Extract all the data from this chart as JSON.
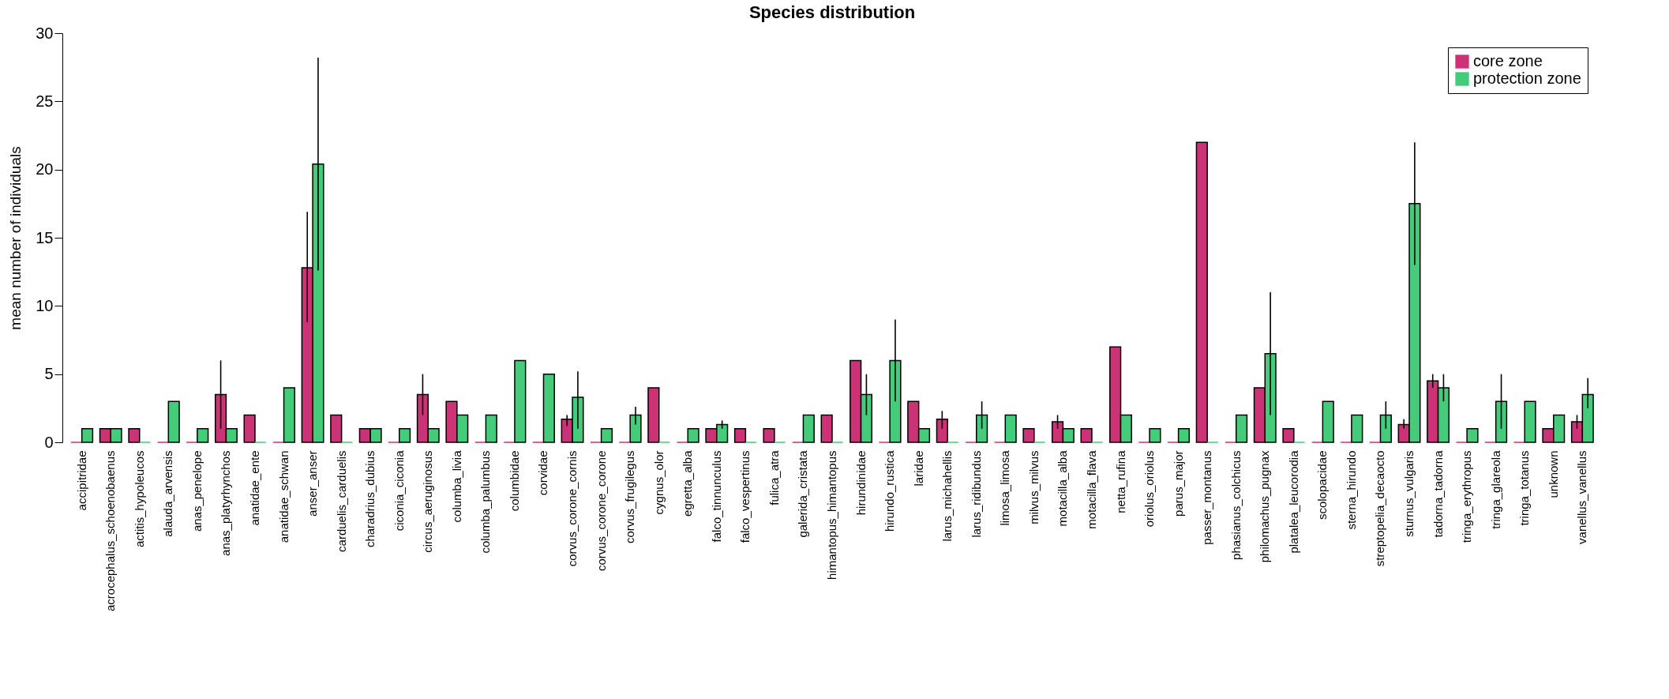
{
  "chart_data": {
    "type": "bar",
    "title": "Species distribution",
    "ylabel": "mean number of individuals",
    "categories": [
      "accipitridae",
      "acrocephalus_schoenobaenus",
      "actitis_hypoleucos",
      "alauda_arvensis",
      "anas_penelope",
      "anas_platyrhynchos",
      "anatidae_ente",
      "anatidae_schwan",
      "anser_anser",
      "carduelis_carduelis",
      "charadrius_dubius",
      "ciconia_ciconia",
      "circus_aeruginosus",
      "columba_livia",
      "columba_palumbus",
      "columbidae",
      "corvidae",
      "corvus_corone_cornis",
      "corvus_corone_corone",
      "corvus_frugilegus",
      "cygnus_olor",
      "egretta_alba",
      "falco_tinnunculus",
      "falco_vespertinus",
      "fulica_atra",
      "galerida_cristata",
      "himantopus_himantopus",
      "hirundinidae",
      "hirundo_rustica",
      "laridae",
      "larus_michahellis",
      "larus_ridibundus",
      "limosa_limosa",
      "milvus_milvus",
      "motacilla_alba",
      "motacilla_flava",
      "netta_rufina",
      "oriolus_oriolus",
      "parus_major",
      "passer_montanus",
      "phasianus_colchicus",
      "philomachus_pugnax",
      "platalea_leucorodia",
      "scolopacidae",
      "sterna_hirundo",
      "streptopelia_decaocto",
      "sturnus_vulgaris",
      "tadorna_tadorna",
      "tringa_erythropus",
      "tringa_glareola",
      "tringa_totanus",
      "unknown",
      "vanellus_vanellus"
    ],
    "series": [
      {
        "name": "core zone",
        "color": "#cc3377",
        "values": [
          0,
          1,
          1,
          0,
          0,
          3.5,
          2,
          0,
          12.8,
          2,
          1,
          0,
          3.5,
          3,
          0,
          0,
          0,
          1.7,
          0,
          0,
          4,
          0,
          1,
          1,
          1,
          0,
          2,
          6,
          0,
          3,
          1.7,
          0,
          0,
          1,
          1.5,
          1,
          7,
          0,
          0,
          22,
          0,
          4,
          1,
          0,
          0,
          0,
          1.3,
          4.5,
          0,
          0,
          0,
          1,
          1.5
        ],
        "errors": [
          null,
          null,
          null,
          null,
          null,
          [
            1,
            6
          ],
          null,
          null,
          [
            8.8,
            16.9
          ],
          null,
          null,
          null,
          [
            2,
            5
          ],
          null,
          null,
          null,
          null,
          [
            1.2,
            2
          ],
          null,
          null,
          null,
          null,
          null,
          null,
          null,
          null,
          null,
          null,
          null,
          null,
          [
            1,
            2.3
          ],
          null,
          null,
          null,
          [
            1,
            2
          ],
          null,
          null,
          null,
          null,
          null,
          null,
          null,
          null,
          null,
          null,
          null,
          [
            1,
            1.7
          ],
          [
            4,
            5
          ],
          null,
          null,
          null,
          null,
          [
            1,
            2
          ]
        ]
      },
      {
        "name": "protection zone",
        "color": "#44cc7a",
        "values": [
          1,
          1,
          0,
          3,
          1,
          1,
          0,
          4,
          20.4,
          0,
          1,
          1,
          1,
          2,
          2,
          6,
          5,
          3.3,
          1,
          2,
          0,
          1,
          1.3,
          0,
          0,
          2,
          0,
          3.5,
          6,
          1,
          0,
          2,
          2,
          0,
          1,
          0,
          2,
          1,
          1,
          0,
          2,
          6.5,
          0,
          3,
          2,
          2,
          17.5,
          4,
          1,
          3,
          3,
          2,
          3.5
        ],
        "errors": [
          null,
          null,
          null,
          null,
          null,
          null,
          null,
          null,
          [
            12.6,
            28.2
          ],
          null,
          null,
          null,
          null,
          null,
          null,
          null,
          null,
          [
            1,
            5.2
          ],
          null,
          [
            1.3,
            2.6
          ],
          null,
          null,
          [
            1,
            1.6
          ],
          null,
          null,
          null,
          null,
          [
            2,
            5
          ],
          [
            3,
            9
          ],
          null,
          null,
          [
            1,
            3
          ],
          null,
          null,
          null,
          null,
          null,
          null,
          null,
          null,
          null,
          [
            2,
            11
          ],
          null,
          null,
          null,
          [
            1,
            3
          ],
          [
            13,
            22
          ],
          [
            3,
            5
          ],
          null,
          [
            1,
            5
          ],
          null,
          null,
          [
            2.5,
            4.7
          ]
        ]
      }
    ],
    "ylim": [
      0,
      30
    ],
    "yticks": [
      0,
      5,
      10,
      15,
      20,
      25,
      30
    ],
    "grid": false,
    "legend": "top right"
  }
}
